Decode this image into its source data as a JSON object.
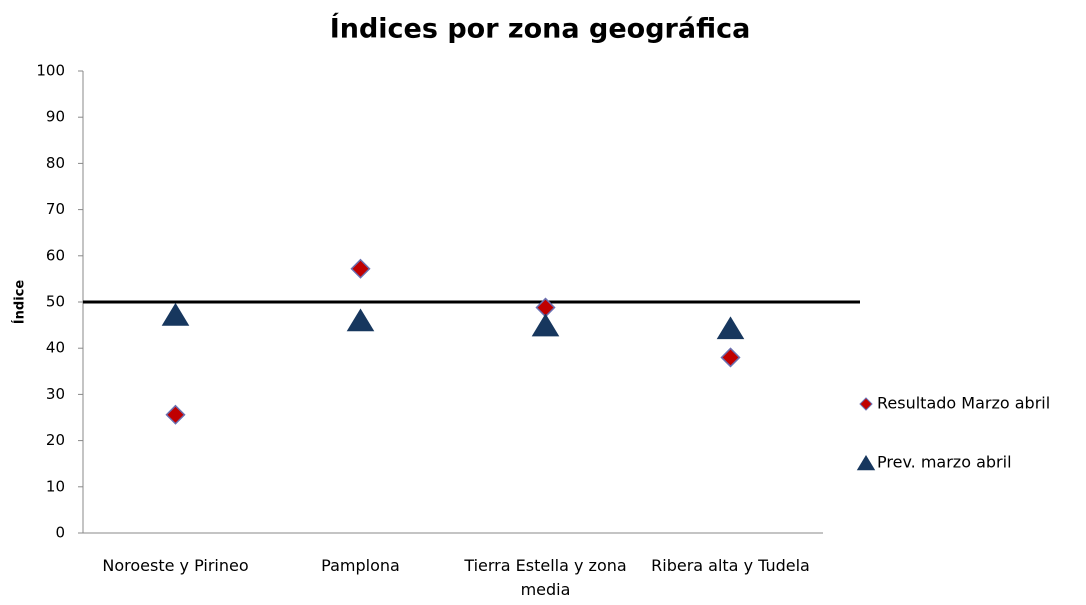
{
  "chart_data": {
    "type": "scatter",
    "title": "Índices por zona geográfica",
    "y_label": "Índice",
    "categories": [
      "Noroeste y Pirineo",
      "Pamplona",
      "Tierra Estella y zona media",
      "Ribera alta y Tudela"
    ],
    "series": [
      {
        "name": "Resultado Marzo abril",
        "color": "#c00000",
        "marker": "diamond",
        "values": [
          25.6,
          57.2,
          48.8,
          38
        ]
      },
      {
        "name": "Prev. marzo abril",
        "color": "#17375e",
        "marker": "triangle",
        "values": [
          47.2,
          46,
          44.9,
          44.3
        ]
      }
    ],
    "reference_line": 50,
    "ylim": [
      0,
      100
    ],
    "yticks": [
      0,
      10,
      20,
      30,
      40,
      50,
      60,
      70,
      80,
      90,
      100
    ],
    "grid": false,
    "legend": "right"
  }
}
